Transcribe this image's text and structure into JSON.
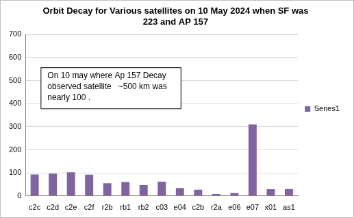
{
  "chart_data": {
    "type": "bar",
    "title": "Orbit Decay for Various satellites on 10 May 2024 when SF was 223 and AP 157",
    "annotation": "On 10 may where Ap 157 Decay observed satellite   ~500 km was nearly 100 .",
    "categories": [
      "c2c",
      "c2d",
      "c2e",
      "c2f",
      "r2b",
      "rb1",
      "rb2",
      "c03",
      "e04",
      "c2b",
      "r2a",
      "e06",
      "e07",
      "x01",
      "as1"
    ],
    "series": [
      {
        "name": "Series1",
        "color": "#8064a2",
        "values": [
          93,
          97,
          103,
          92,
          55,
          60,
          47,
          62,
          34,
          27,
          8,
          13,
          310,
          29,
          30
        ]
      }
    ],
    "ylim": [
      0,
      700
    ],
    "yticks": [
      0,
      100,
      200,
      300,
      400,
      500,
      600,
      700
    ],
    "grid": true,
    "legend": "right"
  }
}
